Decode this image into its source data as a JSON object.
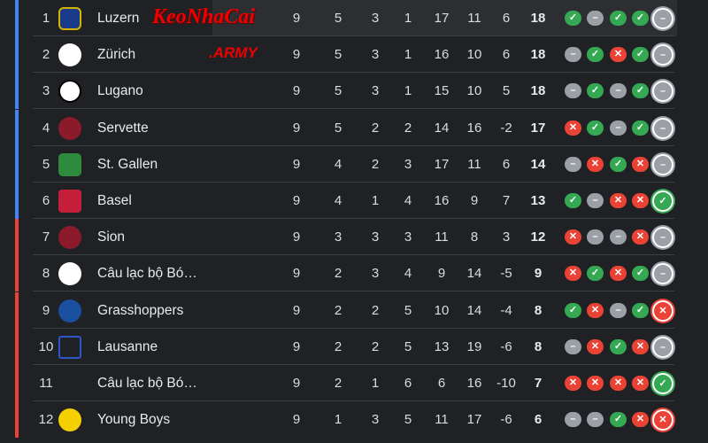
{
  "colors": {
    "win": "#34a853",
    "loss": "#ea4335",
    "draw": "#9aa0a6",
    "top_zone": "#4285f4",
    "bottom_zone": "#ea4335"
  },
  "watermark": {
    "text": "KeoNhaCai",
    "suffix": ".ARMY"
  },
  "teams": [
    {
      "rank": "1",
      "name": "Luzern",
      "logo": "FCL",
      "p": "9",
      "w": "5",
      "d": "3",
      "l": "1",
      "gf": "17",
      "ga": "11",
      "gd": "6",
      "pts": "18",
      "form": [
        "W",
        "D",
        "W",
        "W",
        "D"
      ],
      "zone": "top",
      "highlighted": true
    },
    {
      "rank": "2",
      "name": "Zürich",
      "logo": "FCZ",
      "p": "9",
      "w": "5",
      "d": "3",
      "l": "1",
      "gf": "16",
      "ga": "10",
      "gd": "6",
      "pts": "18",
      "form": [
        "D",
        "W",
        "L",
        "W",
        "D"
      ],
      "zone": "top"
    },
    {
      "rank": "3",
      "name": "Lugano",
      "logo": "LF",
      "p": "9",
      "w": "5",
      "d": "3",
      "l": "1",
      "gf": "15",
      "ga": "10",
      "gd": "5",
      "pts": "18",
      "form": [
        "D",
        "W",
        "D",
        "W",
        "D"
      ],
      "zone": "top"
    },
    {
      "rank": "4",
      "name": "Servette",
      "logo": "S",
      "p": "9",
      "w": "5",
      "d": "2",
      "l": "2",
      "gf": "14",
      "ga": "16",
      "gd": "-2",
      "pts": "17",
      "form": [
        "L",
        "W",
        "D",
        "W",
        "D"
      ],
      "zone": "top"
    },
    {
      "rank": "5",
      "name": "St. Gallen",
      "logo": "FCSG",
      "p": "9",
      "w": "4",
      "d": "2",
      "l": "3",
      "gf": "17",
      "ga": "11",
      "gd": "6",
      "pts": "14",
      "form": [
        "D",
        "L",
        "W",
        "L",
        "D"
      ],
      "zone": "top"
    },
    {
      "rank": "6",
      "name": "Basel",
      "logo": "B",
      "p": "9",
      "w": "4",
      "d": "1",
      "l": "4",
      "gf": "16",
      "ga": "9",
      "gd": "7",
      "pts": "13",
      "form": [
        "W",
        "D",
        "L",
        "L",
        "W"
      ],
      "zone": "top"
    },
    {
      "rank": "7",
      "name": "Sion",
      "logo": "S",
      "p": "9",
      "w": "3",
      "d": "3",
      "l": "3",
      "gf": "11",
      "ga": "8",
      "gd": "3",
      "pts": "12",
      "form": [
        "L",
        "D",
        "D",
        "L",
        "D"
      ],
      "zone": "bottom"
    },
    {
      "rank": "8",
      "name": "Câu lạc bộ Bó…",
      "logo": "Y",
      "p": "9",
      "w": "2",
      "d": "3",
      "l": "4",
      "gf": "9",
      "ga": "14",
      "gd": "-5",
      "pts": "9",
      "form": [
        "L",
        "W",
        "L",
        "W",
        "D"
      ],
      "zone": "bottom"
    },
    {
      "rank": "9",
      "name": "Grasshoppers",
      "logo": "G",
      "p": "9",
      "w": "2",
      "d": "2",
      "l": "5",
      "gf": "10",
      "ga": "14",
      "gd": "-4",
      "pts": "8",
      "form": [
        "W",
        "L",
        "D",
        "W",
        "L"
      ],
      "zone": "bottom"
    },
    {
      "rank": "10",
      "name": "Lausanne",
      "logo": "LS",
      "p": "9",
      "w": "2",
      "d": "2",
      "l": "5",
      "gf": "13",
      "ga": "19",
      "gd": "-6",
      "pts": "8",
      "form": [
        "D",
        "L",
        "W",
        "L",
        "D"
      ],
      "zone": "bottom"
    },
    {
      "rank": "11",
      "name": "Câu lạc bộ Bó…",
      "logo": "W",
      "p": "9",
      "w": "2",
      "d": "1",
      "l": "6",
      "gf": "6",
      "ga": "16",
      "gd": "-10",
      "pts": "7",
      "form": [
        "L",
        "L",
        "L",
        "L",
        "W"
      ],
      "zone": "bottom"
    },
    {
      "rank": "12",
      "name": "Young Boys",
      "logo": "YB",
      "p": "9",
      "w": "1",
      "d": "3",
      "l": "5",
      "gf": "11",
      "ga": "17",
      "gd": "-6",
      "pts": "6",
      "form": [
        "D",
        "D",
        "W",
        "L",
        "L"
      ],
      "zone": "bottom"
    }
  ]
}
